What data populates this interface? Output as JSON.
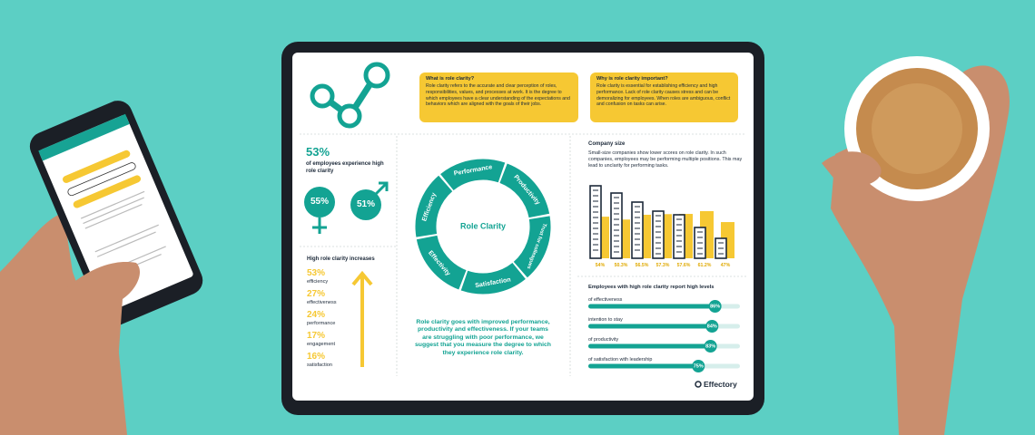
{
  "logo": "Effectory",
  "what": {
    "title": "What is role clarity?",
    "text": "Role clarity refers to the accurate and clear perception of roles, responsibilities, values, and processes at work. It is the degree to which employees have a clear understanding of the expectations and behaviors which are aligned with the goals of their jobs."
  },
  "why": {
    "title": "Why is role clarity important?",
    "text": "Role clarity is essential for establishing efficiency and high performance. Lack of role clarity causes stress and can be demoralizing for employees. When roles are ambiguous, conflict and confusion on tasks can arise."
  },
  "stat": {
    "value": "53%",
    "text": "of employees experience high role clarity",
    "female": "55%",
    "male": "51%"
  },
  "increases": {
    "title": "High role clarity increases",
    "items": [
      {
        "value": "53%",
        "label": "efficiency"
      },
      {
        "value": "27%",
        "label": "effectiveness"
      },
      {
        "value": "24%",
        "label": "performance"
      },
      {
        "value": "17%",
        "label": "engagement"
      },
      {
        "value": "16%",
        "label": "satisfaction"
      }
    ]
  },
  "wheel": {
    "center": "Role Clarity",
    "segments": [
      "Performance",
      "Productivity",
      "Trust for colleagues",
      "Satisfaction",
      "Effectivity",
      "Efficiency"
    ]
  },
  "closing": "Role clarity goes with improved performance, productivity and effectiveness. If your teams are struggling with poor performance, we suggest that you measure the degree to which they experience role clarity.",
  "company_size": {
    "title": "Company size",
    "text": "Small-size companies show lower scores on role clarity. In such companies, employees may be performing multiple positions. This may lead to unclarity for performing tasks.",
    "bars": [
      {
        "value": 54,
        "label": "54%"
      },
      {
        "value": 50.3,
        "label": "50.3%"
      },
      {
        "value": 56.5,
        "label": "56.5%"
      },
      {
        "value": 57.3,
        "label": "57.3%"
      },
      {
        "value": 57.6,
        "label": "57.6%"
      },
      {
        "value": 61.2,
        "label": "61.2%"
      },
      {
        "value": 47,
        "label": "47%"
      }
    ]
  },
  "report": {
    "title": "Employees with high role clarity report high levels",
    "items": [
      {
        "label": "of effectiveness",
        "value": 86,
        "value_label": "86%"
      },
      {
        "label": "intention to stay",
        "value": 84,
        "value_label": "84%"
      },
      {
        "label": "of productivity",
        "value": 83,
        "value_label": "83%"
      },
      {
        "label": "of satisfaction with leadership",
        "value": 75,
        "value_label": "75%"
      }
    ]
  }
}
